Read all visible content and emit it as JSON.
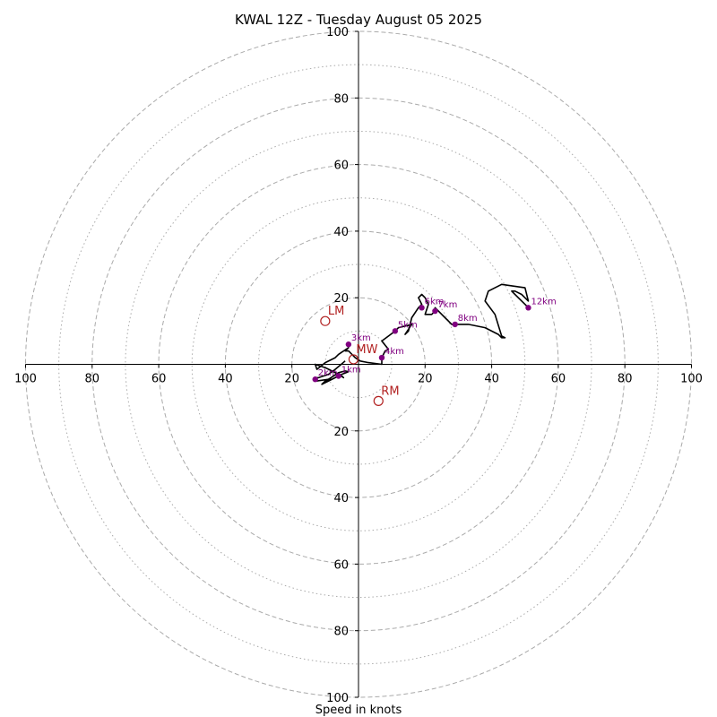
{
  "chart_data": {
    "type": "hodograph",
    "title": "KWAL 12Z - Tuesday August 05 2025",
    "xlabel": "Speed in knots",
    "xlim": [
      -100,
      100
    ],
    "ylim": [
      -100,
      100
    ],
    "rings_major": [
      20,
      40,
      60,
      80,
      100
    ],
    "rings_minor": [
      10,
      30,
      50,
      70,
      90
    ],
    "x_ticks": [
      {
        "value": -100,
        "label": "100"
      },
      {
        "value": -80,
        "label": "80"
      },
      {
        "value": -60,
        "label": "60"
      },
      {
        "value": -40,
        "label": "40"
      },
      {
        "value": -20,
        "label": "20"
      },
      {
        "value": 20,
        "label": "20"
      },
      {
        "value": 40,
        "label": "40"
      },
      {
        "value": 60,
        "label": "60"
      },
      {
        "value": 80,
        "label": "80"
      },
      {
        "value": 100,
        "label": "100"
      }
    ],
    "y_ticks": [
      {
        "value": 100,
        "label": "100"
      },
      {
        "value": 80,
        "label": "80"
      },
      {
        "value": 60,
        "label": "60"
      },
      {
        "value": 40,
        "label": "40"
      },
      {
        "value": 20,
        "label": "20"
      },
      {
        "value": -20,
        "label": "20"
      },
      {
        "value": -40,
        "label": "40"
      },
      {
        "value": -60,
        "label": "60"
      },
      {
        "value": -80,
        "label": "80"
      },
      {
        "value": -100,
        "label": "100"
      }
    ],
    "trace": [
      [
        -4,
        1
      ],
      [
        -7,
        -1.5
      ],
      [
        -9,
        -3
      ],
      [
        -12,
        -4
      ],
      [
        -13,
        -4
      ],
      [
        -12.5,
        -5
      ],
      [
        -9,
        -4.5
      ],
      [
        -6,
        -2.5
      ],
      [
        -4,
        -2
      ],
      [
        -3,
        -2.2
      ],
      [
        -5,
        -3
      ],
      [
        -7,
        -4
      ],
      [
        -8,
        -4.5
      ],
      [
        -10,
        -5
      ],
      [
        -11,
        -6
      ],
      [
        -9,
        -5
      ],
      [
        -6,
        -3.5
      ],
      [
        -5,
        -3.5
      ],
      [
        -4.5,
        -4
      ],
      [
        -6,
        -3
      ],
      [
        -8,
        -2
      ],
      [
        -10,
        -1
      ],
      [
        -13,
        0
      ],
      [
        -12.5,
        -1.5
      ],
      [
        -10,
        0.5
      ],
      [
        -7,
        2
      ],
      [
        -6,
        3
      ],
      [
        -3,
        5
      ],
      [
        -4,
        4
      ],
      [
        -3,
        4
      ],
      [
        -1,
        2
      ],
      [
        0.5,
        1
      ],
      [
        3,
        0.5
      ],
      [
        7,
        0
      ],
      [
        7,
        2
      ],
      [
        8,
        4
      ],
      [
        9,
        4.5
      ],
      [
        7,
        7
      ],
      [
        11,
        10
      ],
      [
        12,
        11
      ],
      [
        14,
        11.5
      ],
      [
        16,
        12
      ],
      [
        14,
        9
      ],
      [
        15,
        10
      ],
      [
        16,
        14
      ],
      [
        18,
        17
      ],
      [
        19,
        18
      ],
      [
        18,
        20
      ],
      [
        19,
        21
      ],
      [
        20,
        20
      ],
      [
        21,
        18
      ],
      [
        20,
        15
      ],
      [
        22,
        15
      ],
      [
        23,
        16
      ],
      [
        23,
        17
      ],
      [
        24,
        16
      ],
      [
        25,
        15
      ],
      [
        26,
        14
      ],
      [
        27,
        13
      ],
      [
        28,
        12
      ],
      [
        29,
        12
      ],
      [
        31,
        12
      ],
      [
        33,
        12
      ],
      [
        38,
        11
      ],
      [
        42,
        9
      ],
      [
        43,
        8
      ],
      [
        44,
        8
      ],
      [
        43,
        8.5
      ],
      [
        41,
        15
      ],
      [
        38,
        19
      ],
      [
        39,
        22
      ],
      [
        43,
        24
      ],
      [
        50,
        23
      ],
      [
        51,
        19
      ],
      [
        49,
        21
      ],
      [
        47,
        22
      ],
      [
        46,
        22
      ],
      [
        48,
        20
      ],
      [
        50,
        18
      ],
      [
        51,
        17
      ]
    ],
    "height_markers": [
      {
        "label": "3km",
        "u": -3,
        "v": 6
      },
      {
        "label": "4km",
        "u": 7,
        "v": 2
      },
      {
        "label": "5km",
        "u": 11,
        "v": 10
      },
      {
        "label": "6km",
        "u": 19,
        "v": 17
      },
      {
        "label": "7km",
        "u": 23,
        "v": 16
      },
      {
        "label": "8km",
        "u": 29,
        "v": 12
      },
      {
        "label": "12km",
        "u": 51,
        "v": 17
      },
      {
        "label": "1km",
        "u": -6,
        "v": -3.5
      },
      {
        "label": "2km",
        "u": -13,
        "v": -4.5
      }
    ],
    "motion_markers": [
      {
        "label": "LM",
        "u": -10,
        "v": 13
      },
      {
        "label": "MW",
        "u": -1.5,
        "v": 1.5
      },
      {
        "label": "RM",
        "u": 6,
        "v": -11
      }
    ],
    "colors": {
      "trace": "#000000",
      "height_marker": "#800080",
      "motion_marker": "#b22222",
      "ring": "#aaaaaa"
    }
  }
}
